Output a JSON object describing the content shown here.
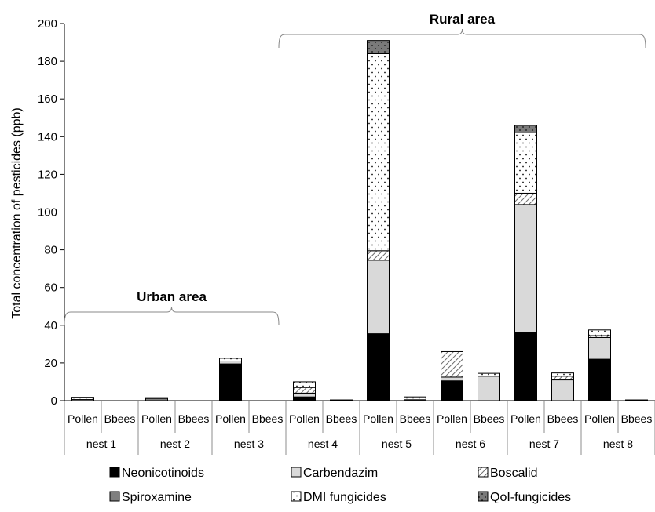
{
  "chart_data": {
    "type": "bar",
    "stacked": true,
    "ylabel": "Total concentration of pesticides (ppb)",
    "ylim": [
      0,
      200
    ],
    "yticks": [
      0,
      20,
      40,
      60,
      80,
      100,
      120,
      140,
      160,
      180,
      200
    ],
    "groups": [
      "nest 1",
      "nest 2",
      "nest 3",
      "nest 4",
      "nest 5",
      "nest 6",
      "nest 7",
      "nest 8"
    ],
    "sample_types": [
      "Pollen",
      "Bbees"
    ],
    "categories": [
      "nest 1 Pollen",
      "nest 1 Bbees",
      "nest 2 Pollen",
      "nest 2 Bbees",
      "nest 3 Pollen",
      "nest 3 Bbees",
      "nest 4 Pollen",
      "nest 4 Bbees",
      "nest 5 Pollen",
      "nest 5 Bbees",
      "nest 6 Pollen",
      "nest 6 Bbees",
      "nest 7 Pollen",
      "nest 7 Bbees",
      "nest 8 Pollen",
      "nest 8 Bbees"
    ],
    "series": [
      {
        "name": "Neonicotinoids",
        "pattern": "solid-black",
        "values": [
          0,
          0,
          0,
          0,
          19.5,
          0,
          2,
          0,
          35.5,
          0,
          10.5,
          0,
          36,
          0,
          22,
          0
        ]
      },
      {
        "name": "Carbendazim",
        "pattern": "light-gray",
        "values": [
          0.6,
          0,
          0,
          0,
          1.5,
          0,
          2,
          0,
          39,
          0.5,
          2,
          13,
          68,
          11,
          11.5,
          0
        ]
      },
      {
        "name": "Boscalid",
        "pattern": "diagonal-hatch",
        "values": [
          0,
          0,
          0,
          0,
          0,
          0,
          3,
          0,
          5,
          0,
          13.5,
          0,
          6,
          2,
          1,
          0
        ]
      },
      {
        "name": "Spiroxamine",
        "pattern": "dark-gray",
        "values": [
          0,
          0,
          1.2,
          0,
          0,
          0,
          0,
          0.4,
          0,
          0,
          0,
          0,
          0,
          0,
          0,
          0.4
        ]
      },
      {
        "name": "DMI fungicides",
        "pattern": "white-dotted",
        "values": [
          1.2,
          0,
          0.4,
          0,
          1.5,
          0,
          3,
          0,
          104.5,
          1.5,
          0,
          1.5,
          32,
          1.7,
          3,
          0
        ]
      },
      {
        "name": "QoI-fungicides",
        "pattern": "dark-gray-dotted",
        "values": [
          0,
          0,
          0,
          0,
          0,
          0,
          0,
          0,
          7,
          0,
          0,
          0,
          4,
          0,
          0,
          0
        ]
      }
    ],
    "annotations": [
      {
        "text": "Urban area",
        "spans_groups": [
          "nest 1",
          "nest 2",
          "nest 3"
        ]
      },
      {
        "text": "Rural area",
        "spans_groups": [
          "nest 4",
          "nest 5",
          "nest 6",
          "nest 7",
          "nest 8"
        ]
      }
    ],
    "legend_position": "bottom",
    "grid": false
  }
}
